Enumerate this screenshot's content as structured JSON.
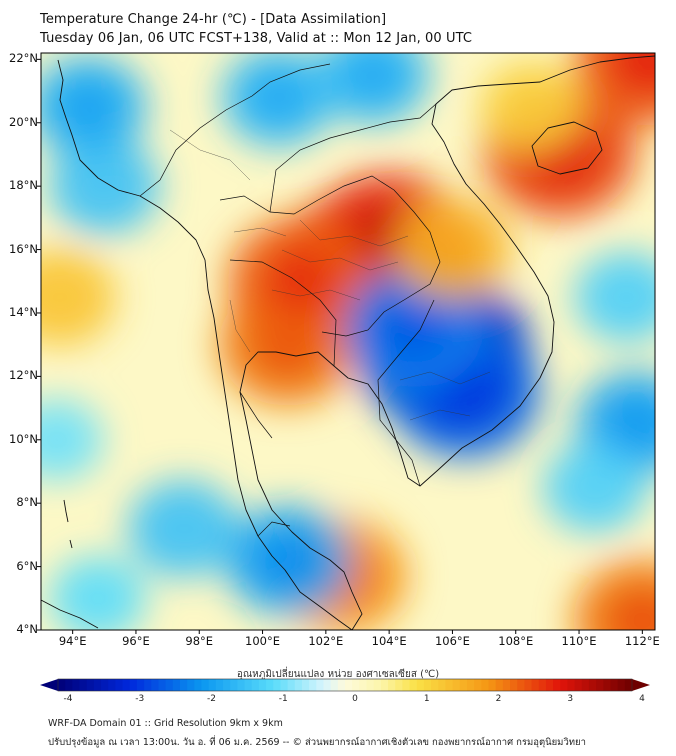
{
  "header": {
    "title_line1": "Temperature Change 24-hr (℃) - [Data Assimilation]",
    "title_line2": "Tuesday 06 Jan, 06 UTC FCST+138, Valid at :: Mon 12 Jan, 00 UTC"
  },
  "map": {
    "lat_labels": [
      "22°N",
      "20°N",
      "18°N",
      "16°N",
      "14°N",
      "12°N",
      "10°N",
      "8°N",
      "6°N",
      "4°N"
    ],
    "lon_labels": [
      "94°E",
      "96°E",
      "98°E",
      "100°E",
      "102°E",
      "104°E",
      "106°E",
      "108°E",
      "110°E",
      "112°E"
    ],
    "lat_range": [
      4,
      22.2
    ],
    "lon_range": [
      93,
      112.4
    ],
    "anomalies": [
      {
        "lon": 102.8,
        "lat": 15.3,
        "value": 3.0
      },
      {
        "lon": 104.0,
        "lat": 16.2,
        "value": 2.8
      },
      {
        "lon": 100.8,
        "lat": 13.0,
        "value": 2.2
      },
      {
        "lon": 101.2,
        "lat": 15.0,
        "value": 2.4
      },
      {
        "lon": 109.4,
        "lat": 19.1,
        "value": 2.6
      },
      {
        "lon": 102.5,
        "lat": 5.7,
        "value": 2.0
      },
      {
        "lon": 112.2,
        "lat": 22.0,
        "value": 2.5
      },
      {
        "lon": 105.7,
        "lat": 12.8,
        "value": -3.2
      },
      {
        "lon": 106.4,
        "lat": 11.5,
        "value": -2.5
      },
      {
        "lon": 104.8,
        "lat": 13.5,
        "value": -2.2
      },
      {
        "lon": 100.8,
        "lat": 6.2,
        "value": -1.8
      },
      {
        "lon": 97.5,
        "lat": 7.2,
        "value": -1.4
      },
      {
        "lon": 95.0,
        "lat": 18.0,
        "value": -1.4
      },
      {
        "lon": 94.5,
        "lat": 20.5,
        "value": -1.6
      },
      {
        "lon": 100.5,
        "lat": 20.8,
        "value": -1.5
      },
      {
        "lon": 103.5,
        "lat": 21.5,
        "value": -1.5
      },
      {
        "lon": 111.5,
        "lat": 14.5,
        "value": -1.2
      },
      {
        "lon": 111.8,
        "lat": 10.5,
        "value": -1.7
      },
      {
        "lon": 110.5,
        "lat": 8.5,
        "value": -1.2
      },
      {
        "lon": 93.5,
        "lat": 10.0,
        "value": -0.9
      },
      {
        "lon": 94.8,
        "lat": 5.0,
        "value": -1.0
      },
      {
        "lon": 106.0,
        "lat": 16.0,
        "value": 1.6
      },
      {
        "lon": 93.6,
        "lat": 14.5,
        "value": 1.4
      },
      {
        "lon": 112.0,
        "lat": 4.3,
        "value": 2.2
      },
      {
        "lon": 108.5,
        "lat": 20.5,
        "value": 1.2
      }
    ]
  },
  "colorbar": {
    "title": "อุณหภูมิเปลี่ยนแปลง หน่วย องศาเซลเซียส (℃)",
    "ticks": [
      "-4",
      "-3",
      "-2",
      "-1",
      "0",
      "1",
      "2",
      "3",
      "4"
    ],
    "min": -4,
    "max": 4
  },
  "footer": {
    "line1": "WRF-DA Domain 01 :: Grid Resolution 9km x 9km",
    "line2": "ปรับปรุงข้อมูล ณ เวลา 13:00น. วัน อ. ที่ 06 ม.ค. 2569 -- © ส่วนพยากรณ์อากาศเชิงตัวเลข กองพยากรณ์อากาศ กรมอุตุนิยมวิทยา"
  }
}
